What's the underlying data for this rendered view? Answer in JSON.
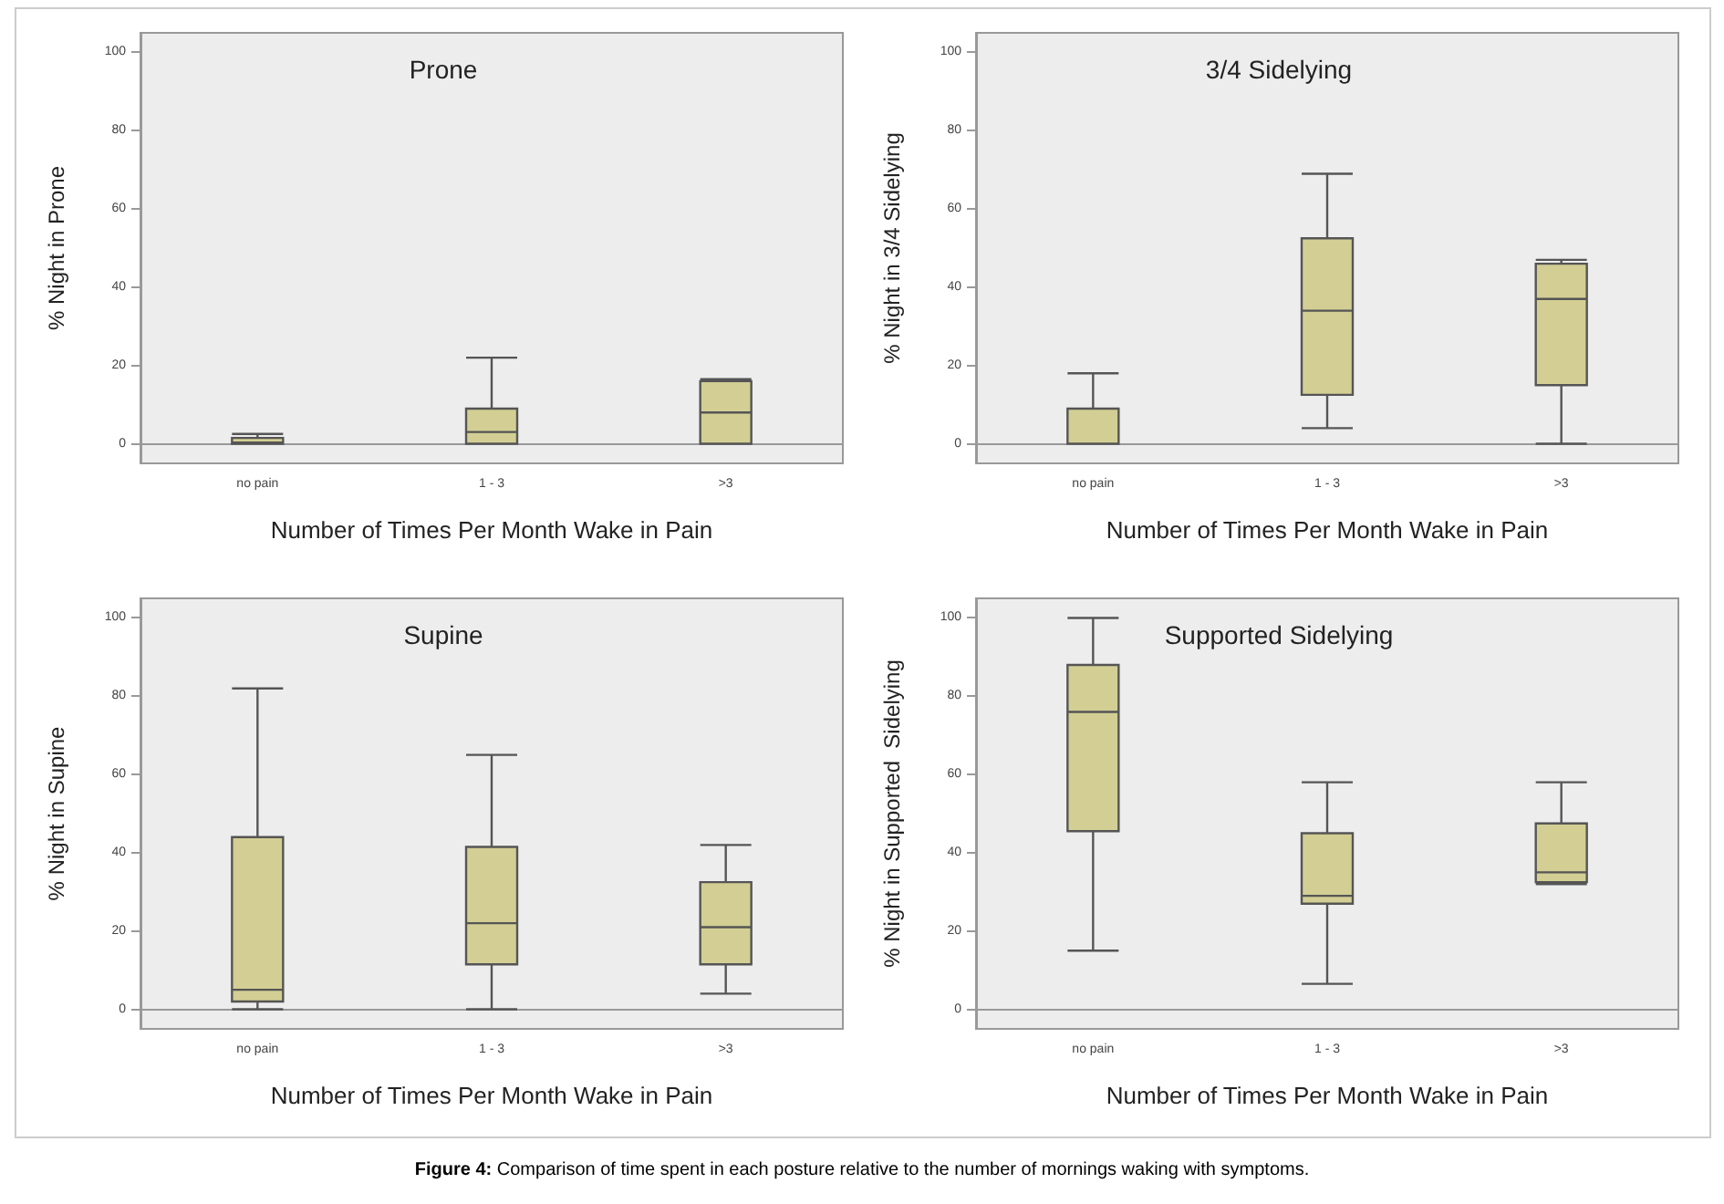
{
  "chart_data": [
    {
      "type": "box",
      "title": "Prone",
      "xlabel": "Number of Times Per Month Wake in Pain",
      "ylabel": "% Night in Prone",
      "categories": [
        "no pain",
        "1 - 3",
        ">3"
      ],
      "color": "#d3cf94",
      "ylim": [
        -5,
        105
      ],
      "yticks": [
        0,
        20,
        40,
        60,
        80,
        100
      ],
      "boxes": [
        {
          "low": 0,
          "q1": 0,
          "median": 0.3,
          "q3": 1.5,
          "high": 2.5
        },
        {
          "low": 0,
          "q1": 0,
          "median": 3,
          "q3": 9,
          "high": 22
        },
        {
          "low": 0,
          "q1": 0,
          "median": 8,
          "q3": 16,
          "high": 16.5
        }
      ]
    },
    {
      "type": "box",
      "title": "3/4 Sidelying",
      "xlabel": "Number of Times Per Month Wake in Pain",
      "ylabel": "% Night in 3/4 Sidelying",
      "categories": [
        "no pain",
        "1 - 3",
        ">3"
      ],
      "color": "#d3cf94",
      "ylim": [
        -5,
        105
      ],
      "yticks": [
        0,
        20,
        40,
        60,
        80,
        100
      ],
      "boxes": [
        {
          "low": 0,
          "q1": 0,
          "median": 0,
          "q3": 9,
          "high": 18
        },
        {
          "low": 4,
          "q1": 12.5,
          "median": 34,
          "q3": 52.5,
          "high": 69
        },
        {
          "low": 0,
          "q1": 15,
          "median": 37,
          "q3": 46,
          "high": 47
        }
      ]
    },
    {
      "type": "box",
      "title": "Supine",
      "xlabel": "Number of Times Per Month Wake in Pain",
      "ylabel": "% Night in Supine",
      "categories": [
        "no pain",
        "1 - 3",
        ">3"
      ],
      "color": "#d3cf94",
      "ylim": [
        -5,
        105
      ],
      "yticks": [
        0,
        20,
        40,
        60,
        80,
        100
      ],
      "boxes": [
        {
          "low": 0,
          "q1": 2,
          "median": 5,
          "q3": 44,
          "high": 82
        },
        {
          "low": 0,
          "q1": 11.5,
          "median": 22,
          "q3": 41.5,
          "high": 65
        },
        {
          "low": 4,
          "q1": 11.5,
          "median": 21,
          "q3": 32.5,
          "high": 42
        }
      ]
    },
    {
      "type": "box",
      "title": "Supported Sidelying",
      "xlabel": "Number of Times Per Month Wake in Pain",
      "ylabel": "% Night in Supported  Sidelying",
      "categories": [
        "no pain",
        "1 - 3",
        ">3"
      ],
      "color": "#d3cf94",
      "ylim": [
        -5,
        105
      ],
      "yticks": [
        0,
        20,
        40,
        60,
        80,
        100
      ],
      "boxes": [
        {
          "low": 15,
          "q1": 45.5,
          "median": 76,
          "q3": 88,
          "high": 100
        },
        {
          "low": 6.5,
          "q1": 27,
          "median": 29,
          "q3": 45,
          "high": 58
        },
        {
          "low": 32,
          "q1": 32.5,
          "median": 35,
          "q3": 47.5,
          "high": 58
        }
      ],
      "annotations": [
        "Figure 4: Comparison of time spent in each posture relative to the number of mornings waking with symptoms."
      ]
    }
  ]
}
